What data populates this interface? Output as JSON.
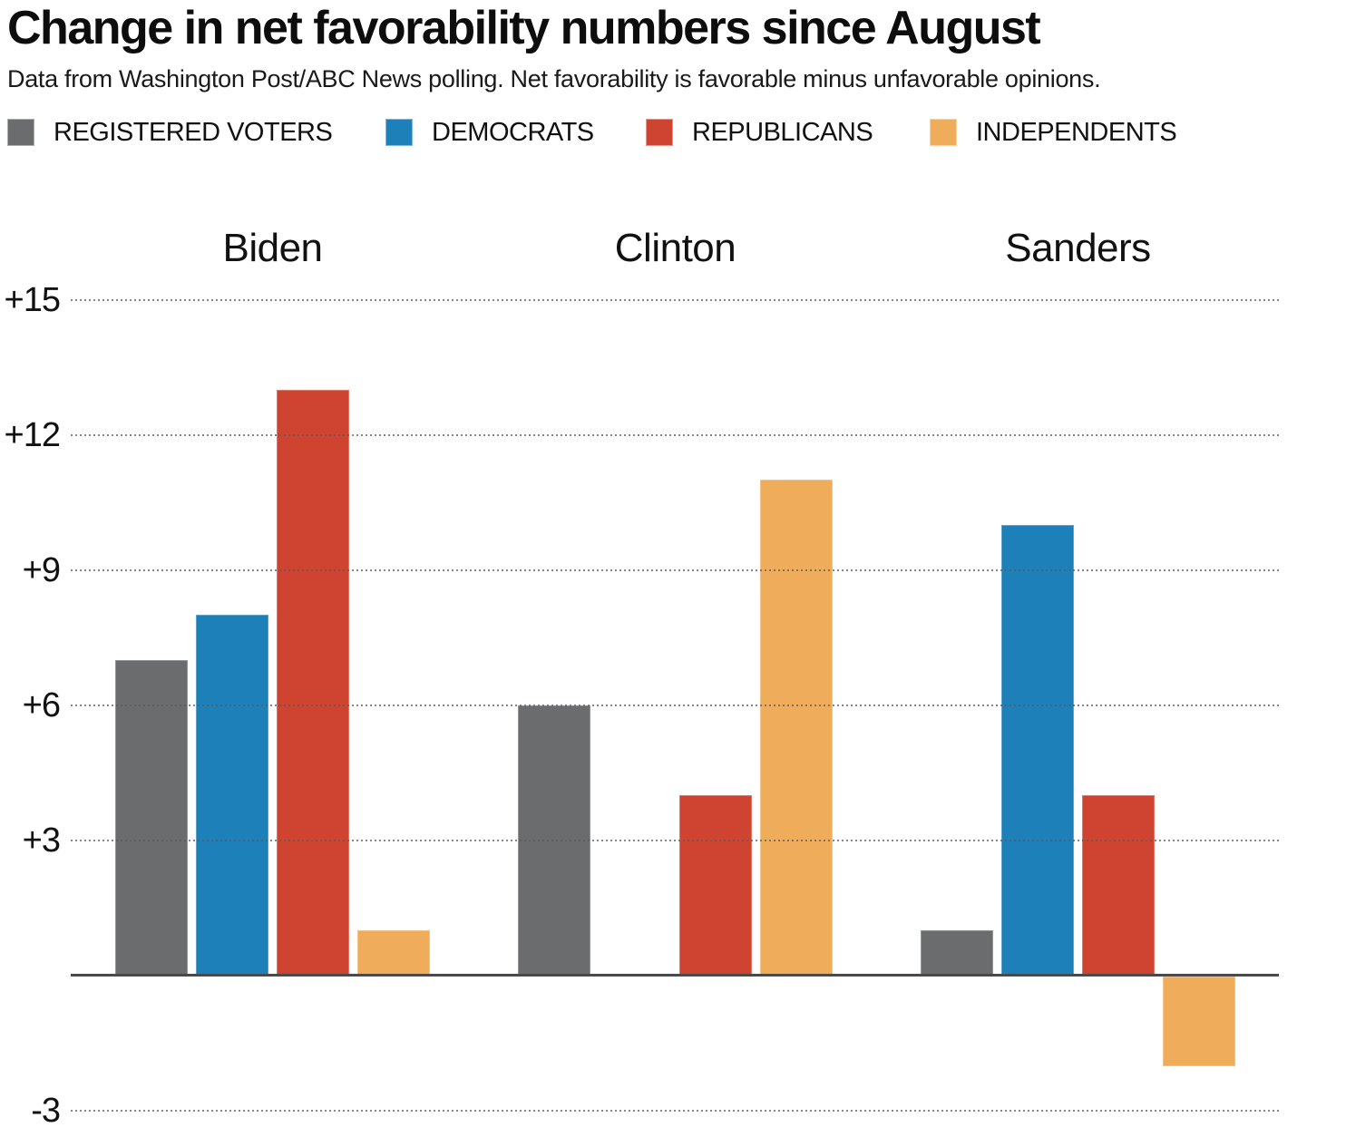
{
  "header": {
    "title": "Change in net favorability numbers since August",
    "subtitle": "Data from Washington Post/ABC News polling. Net favorability is favorable minus unfavorable opinions."
  },
  "colors": {
    "registered_voters": "#6b6c6e",
    "democrats": "#1d80b8",
    "republicans": "#cf4431",
    "independents": "#efad5b",
    "axis_line": "#4a4a4b",
    "gridline": "#5a5a5a"
  },
  "legend": {
    "items": [
      {
        "label": "REGISTERED VOTERS",
        "color_key": "registered_voters"
      },
      {
        "label": "DEMOCRATS",
        "color_key": "democrats"
      },
      {
        "label": "REPUBLICANS",
        "color_key": "republicans"
      },
      {
        "label": "INDEPENDENTS",
        "color_key": "independents"
      }
    ]
  },
  "chart_data": {
    "type": "bar",
    "title": "Change in net favorability numbers since August",
    "categories": [
      "Biden",
      "Clinton",
      "Sanders"
    ],
    "series": [
      {
        "name": "Registered voters",
        "color_key": "registered_voters",
        "values": [
          7,
          6,
          1
        ]
      },
      {
        "name": "Democrats",
        "color_key": "democrats",
        "values": [
          8,
          0,
          10
        ]
      },
      {
        "name": "Republicans",
        "color_key": "republicans",
        "values": [
          13,
          4,
          4
        ]
      },
      {
        "name": "Independents",
        "color_key": "independents",
        "values": [
          1,
          11,
          -2
        ]
      }
    ],
    "yticks": [
      {
        "value": 15,
        "label": "+15"
      },
      {
        "value": 12,
        "label": "+12"
      },
      {
        "value": 9,
        "label": "+9"
      },
      {
        "value": 6,
        "label": "+6"
      },
      {
        "value": 3,
        "label": "+3"
      },
      {
        "value": -3,
        "label": "-3"
      }
    ],
    "baseline": 0,
    "ylim": [
      -3.6,
      15.9
    ],
    "grid": "horizontal-dotted",
    "gridlines_over_bars": true,
    "legend_position": "top",
    "xlabel": "",
    "ylabel": ""
  }
}
